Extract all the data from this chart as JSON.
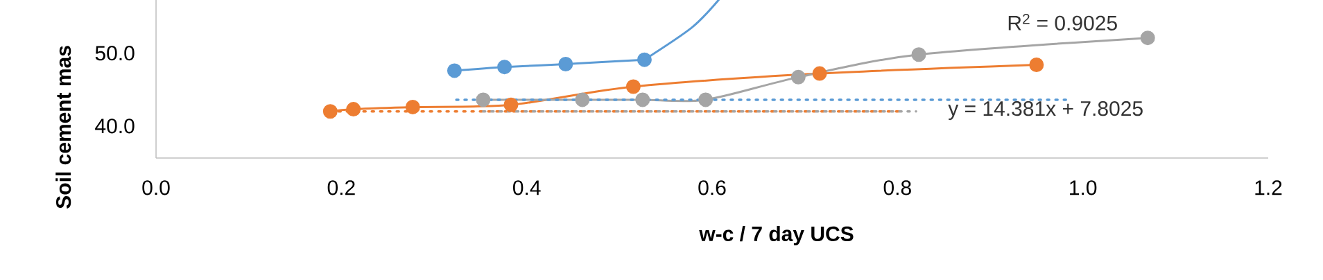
{
  "chart_data": {
    "type": "line",
    "xlabel": "w-c / 7 day UCS",
    "ylabel": "Soil cement mas",
    "xlim": [
      0,
      1.2
    ],
    "ylim": [
      35.6,
      57.3
    ],
    "xticks": [
      {
        "value": 0,
        "label": "0.0"
      },
      {
        "value": 0.2,
        "label": "0.2"
      },
      {
        "value": 0.4,
        "label": "0.4"
      },
      {
        "value": 0.6,
        "label": "0.6"
      },
      {
        "value": 0.8,
        "label": "0.8"
      },
      {
        "value": 1.0,
        "label": "1.0"
      },
      {
        "value": 1.2,
        "label": "1.2"
      }
    ],
    "yticks": [
      {
        "value": 40,
        "label": "40.0"
      },
      {
        "value": 50,
        "label": "50.0"
      }
    ],
    "grid": false,
    "series": [
      {
        "color": "#5b9bd5",
        "marker": "circle",
        "line_style": "solid",
        "x": [
          0.322,
          0.376,
          0.442,
          0.527
        ],
        "values": [
          47.6,
          48.1,
          48.5,
          49.1
        ]
      },
      {
        "color": "#5b9bd5",
        "marker": "none",
        "line_style": "solid",
        "x": [
          0.527,
          0.578,
          0.607
        ],
        "values": [
          49.1,
          53.5,
          57.3
        ]
      },
      {
        "color": "#ed7d31",
        "marker": "circle",
        "line_style": "solid",
        "x": [
          0.188,
          0.213,
          0.277,
          0.383,
          0.515,
          0.716,
          0.95
        ],
        "values": [
          42.0,
          42.3,
          42.6,
          42.9,
          45.4,
          47.2,
          48.4
        ]
      },
      {
        "color": "#a5a5a5",
        "marker": "circle",
        "line_style": "solid",
        "x": [
          0.353,
          0.46,
          0.525,
          0.593,
          0.693,
          0.823,
          1.07
        ],
        "values": [
          43.6,
          43.6,
          43.6,
          43.6,
          46.7,
          49.8,
          52.1
        ]
      },
      {
        "color": "#5b9bd5",
        "marker": "none",
        "line_style": "dotted",
        "x": [
          0.324,
          0.985
        ],
        "values": [
          43.6,
          43.6
        ]
      },
      {
        "color": "#ed7d31",
        "marker": "none",
        "line_style": "dotted",
        "x": [
          0.188,
          0.802
        ],
        "values": [
          42.0,
          42.0
        ]
      },
      {
        "color": "#a5a5a5",
        "marker": "none",
        "line_style": "dotted",
        "x": [
          0.353,
          0.82
        ],
        "values": [
          42.0,
          42.0
        ]
      }
    ],
    "annotations": [
      "R$^{2}$ = 0.9025",
      "y = 14.381x + 7.8025"
    ]
  }
}
